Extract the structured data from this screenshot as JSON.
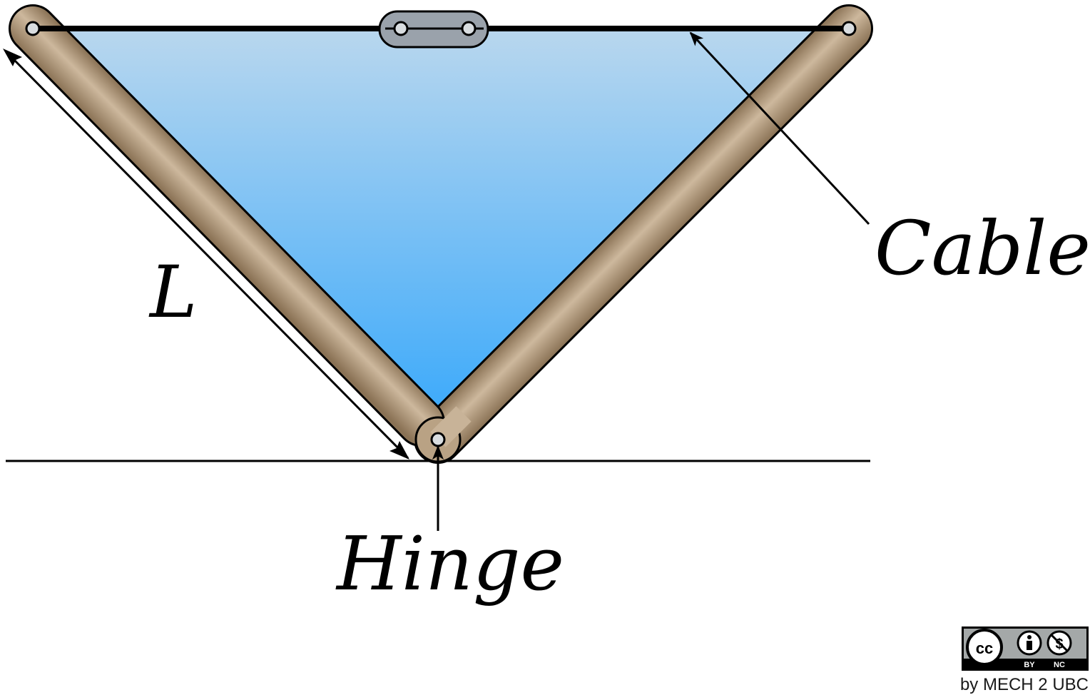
{
  "labels": {
    "length": "L",
    "cable": "Cable",
    "hinge": "Hinge"
  },
  "license": {
    "cc": "cc",
    "by": "BY",
    "nc": "NC",
    "credit": "by MECH 2 UBC"
  },
  "colors": {
    "water_top": "#b9d7ee",
    "water_bottom": "#3aa9fb",
    "beam_light": "#cbb59a",
    "beam_dark": "#8a7255",
    "connector": "#9aa2ab",
    "badge_gray": "#a4a8a8"
  }
}
